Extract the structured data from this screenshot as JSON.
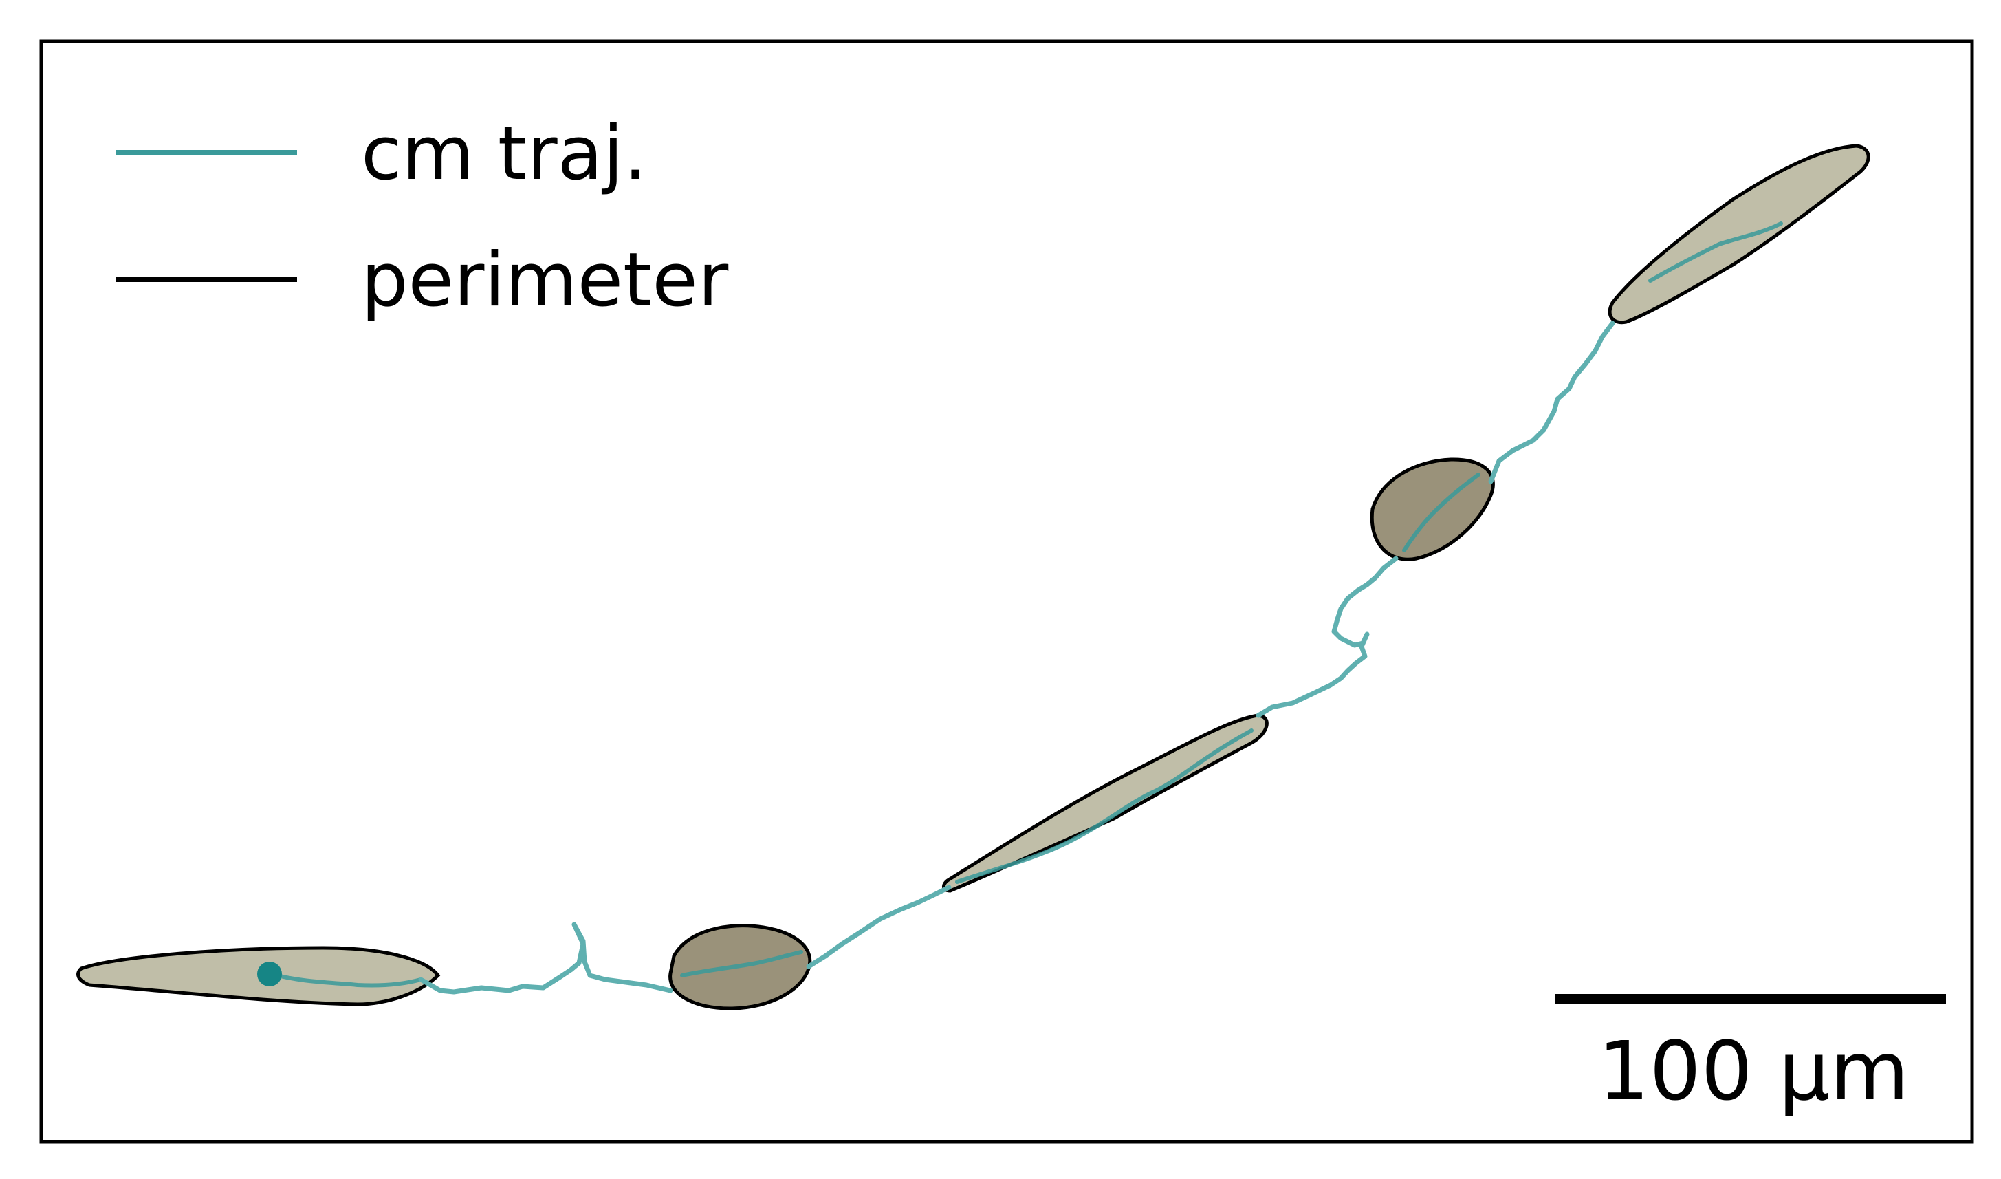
{
  "legend": {
    "items": [
      {
        "label": "cm traj.",
        "color": "#3a9a9a"
      },
      {
        "label": "perimeter",
        "color": "#000000"
      }
    ]
  },
  "scale_bar": {
    "label": "100 µm",
    "length_um": 100
  },
  "colors": {
    "trajectory": "#5fb0b0",
    "trajectory_start_marker": "#168585",
    "perimeter": "#000000",
    "frame": "#000000",
    "cell_fill": "#b9b79e",
    "cell_fill_contracted": "#8f866c"
  }
}
